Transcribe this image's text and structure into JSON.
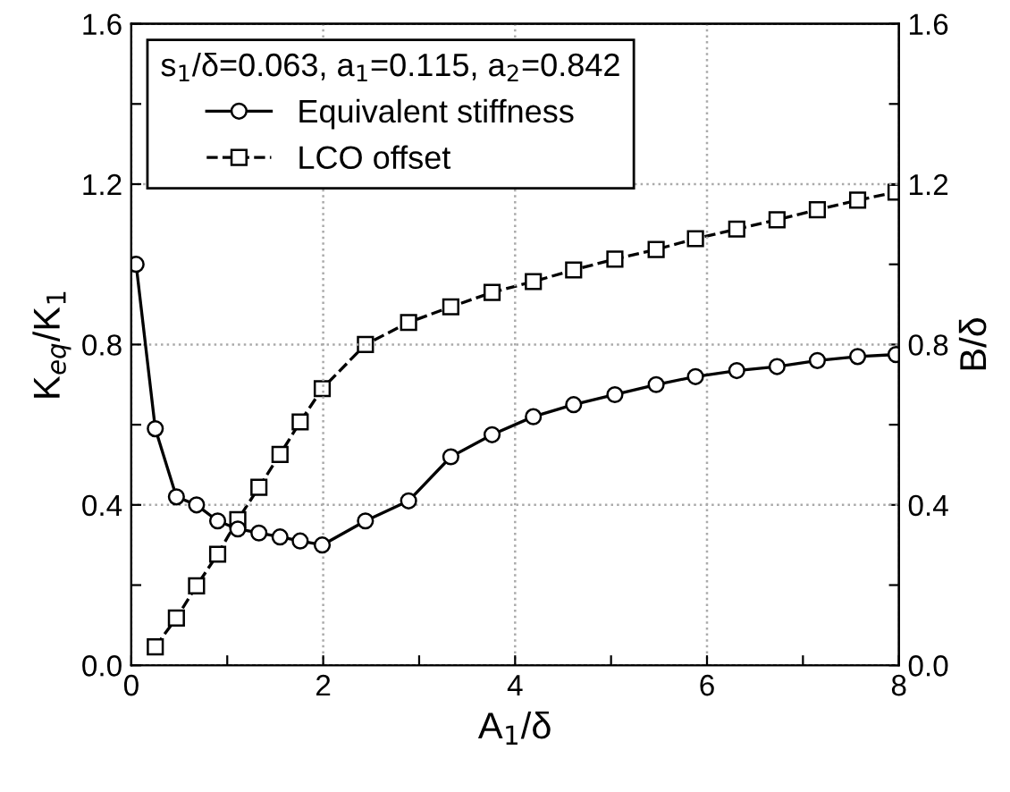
{
  "chart_data": {
    "type": "line",
    "xlabel": "A$_{1}$/δ",
    "ylabel": "K$_{eq}$/K$_{1}$",
    "y2label": "B/δ",
    "legend_title": "s$_{1}$/δ=0.063, a$_{1}$=0.115, a$_{2}$=0.842",
    "legend": "top left",
    "grid": true,
    "xlim": [
      0,
      8
    ],
    "xticks": [
      0,
      {
        "value": 1,
        "label": null
      },
      2,
      {
        "value": 3,
        "label": null
      },
      4,
      {
        "value": 5,
        "label": null
      },
      6,
      {
        "value": 7,
        "label": null
      },
      8
    ],
    "ylim": [
      0,
      1.6
    ],
    "yticks": [
      {
        "value": 0,
        "label": "0.0"
      },
      {
        "value": 0.2,
        "label": null
      },
      0.4,
      {
        "value": 0.6,
        "label": null
      },
      0.8,
      {
        "value": 1,
        "label": null
      },
      1.2,
      {
        "value": 1.4,
        "label": null
      },
      1.6
    ],
    "y2lim": [
      0,
      1.6
    ],
    "y2ticks": [
      {
        "value": 0,
        "label": "0.0"
      },
      {
        "value": 0.2,
        "label": null
      },
      0.4,
      {
        "value": 0.6,
        "label": null
      },
      0.8,
      {
        "value": 1,
        "label": null
      },
      1.2,
      {
        "value": 1.4,
        "label": null
      },
      1.6
    ],
    "series": [
      {
        "name": "Equivalent stiffness",
        "color": "#000000",
        "marker": "circle",
        "line_style": "solid",
        "x": [
          0.05,
          0.25,
          0.47,
          0.68,
          0.9,
          1.11,
          1.33,
          1.55,
          1.76,
          1.99,
          2.44,
          2.89,
          3.33,
          3.76,
          4.19,
          4.61,
          5.04,
          5.47,
          5.88,
          6.31,
          6.73,
          7.15,
          7.57,
          7.97
        ],
        "values": [
          1.0,
          0.59,
          0.42,
          0.4,
          0.36,
          0.34,
          0.33,
          0.32,
          0.31,
          0.3,
          0.36,
          0.41,
          0.52,
          0.575,
          0.62,
          0.65,
          0.675,
          0.7,
          0.72,
          0.735,
          0.745,
          0.76,
          0.77,
          0.775
        ]
      },
      {
        "name": "LCO offset",
        "color": "#000000",
        "marker": "square",
        "line_style": "dashed",
        "axis": "y2",
        "x": [
          0.25,
          0.47,
          0.68,
          0.9,
          1.11,
          1.33,
          1.55,
          1.76,
          1.99,
          2.44,
          2.89,
          3.33,
          3.76,
          4.19,
          4.61,
          5.04,
          5.47,
          5.88,
          6.31,
          6.73,
          7.15,
          7.57,
          7.97
        ],
        "values": [
          0.046,
          0.118,
          0.198,
          0.277,
          0.363,
          0.444,
          0.526,
          0.607,
          0.69,
          0.8,
          0.855,
          0.894,
          0.93,
          0.957,
          0.986,
          1.013,
          1.037,
          1.064,
          1.088,
          1.111,
          1.136,
          1.16,
          1.18
        ]
      }
    ]
  }
}
